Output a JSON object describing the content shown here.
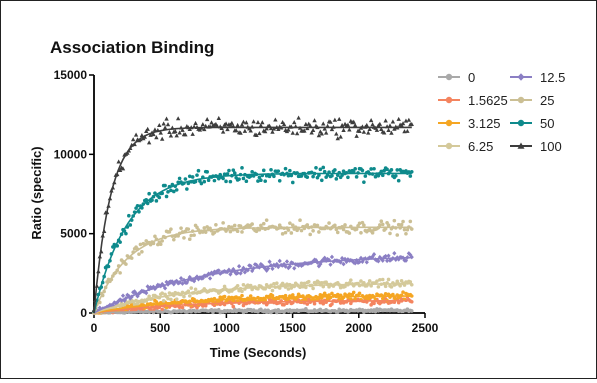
{
  "chart_data": {
    "type": "scatter",
    "title": "Association Binding",
    "xlabel": "Time (Seconds)",
    "ylabel": "Ratio (specific)",
    "xlim": [
      0,
      2500
    ],
    "ylim": [
      0,
      15000
    ],
    "xticks": [
      "0",
      "500",
      "1000",
      "1500",
      "2000",
      "2500"
    ],
    "yticks": [
      "0",
      "5000",
      "10000",
      "15000"
    ],
    "x_range_data": [
      0,
      2400
    ],
    "grid": false,
    "legend": "right",
    "series": [
      {
        "name": "0",
        "color": "#a9a9a9",
        "marker": "circle",
        "plateau": 150,
        "k": 0.002,
        "noise": 80
      },
      {
        "name": "1.5625",
        "color": "#f4845f",
        "marker": "circle",
        "plateau": 800,
        "k": 0.0015,
        "noise": 180
      },
      {
        "name": "3.125",
        "color": "#f5a623",
        "marker": "circle",
        "plateau": 1100,
        "k": 0.0015,
        "noise": 200
      },
      {
        "name": "6.25",
        "color": "#d4c99a",
        "marker": "circle",
        "plateau": 1900,
        "k": 0.0015,
        "noise": 220
      },
      {
        "name": "12.5",
        "color": "#8b7fc4",
        "marker": "diamond",
        "plateau": 3700,
        "k": 0.0012,
        "noise": 250
      },
      {
        "name": "25",
        "color": "#cbbf94",
        "marker": "circle",
        "plateau": 5400,
        "k": 0.004,
        "noise": 330
      },
      {
        "name": "50",
        "color": "#0e8a8c",
        "marker": "circle",
        "plateau": 8800,
        "k": 0.004,
        "noise": 380
      },
      {
        "name": "100",
        "color": "#3d3d3d",
        "marker": "triangle",
        "plateau": 11700,
        "k": 0.008,
        "noise": 480
      }
    ]
  }
}
